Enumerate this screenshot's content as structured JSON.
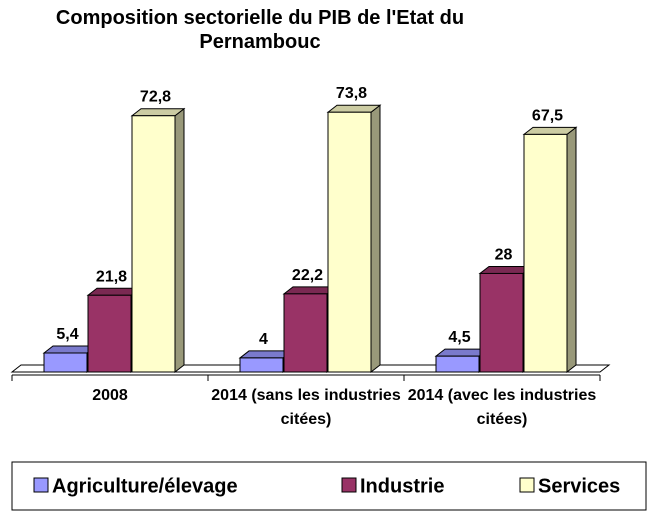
{
  "chart_data": {
    "type": "bar3d",
    "title": "Composition sectorielle du PIB de l'Etat du Pernambouc",
    "categories": [
      "2008",
      "2014 (sans les industries citées)",
      "2014 (avec les industries citées)"
    ],
    "series": [
      {
        "name": "Agriculture/élevage",
        "color": "#9999ff",
        "values": [
          5.4,
          4,
          4.5
        ],
        "value_labels": [
          "5,4",
          "4",
          "4,5"
        ]
      },
      {
        "name": "Industrie",
        "color": "#993366",
        "values": [
          21.8,
          22.2,
          28
        ],
        "value_labels": [
          "21,8",
          "22,2",
          "28"
        ]
      },
      {
        "name": "Services",
        "color": "#ffffcc",
        "values": [
          72.8,
          73.8,
          67.5
        ],
        "value_labels": [
          "72,8",
          "73,8",
          "67,5"
        ]
      }
    ],
    "legend": "bottom"
  }
}
